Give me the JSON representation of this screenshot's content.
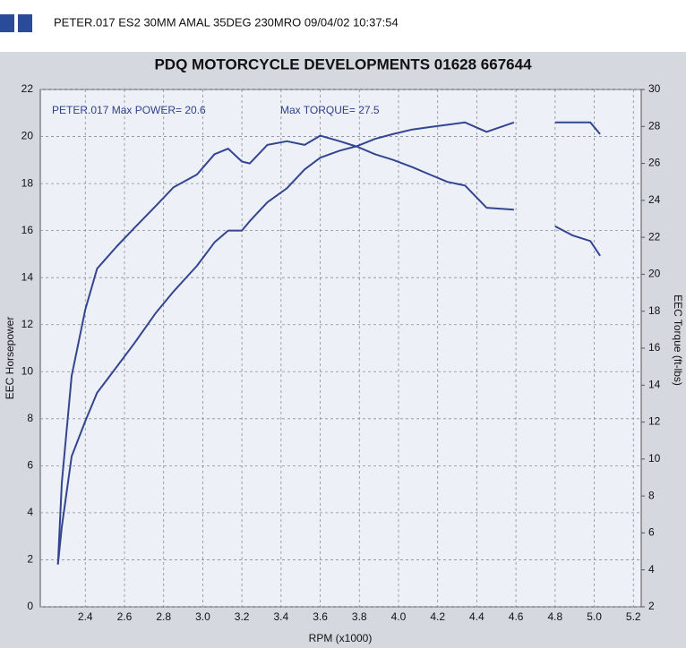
{
  "chart_data": {
    "type": "line",
    "header": "PETER.017   ES2 30MM AMAL 35DEG 230MRO  09/04/02 10:37:54",
    "title": "PDQ MOTORCYCLE DEVELOPMENTS  01628 667644",
    "annotations": [
      "PETER.017  Max POWER= 20.6",
      "Max TORQUE= 27.5"
    ],
    "x_label": "RPM (x1000)",
    "y_label": "EEC Horsepower",
    "y2_label": "EEC Torque (ft-lbs)",
    "x": [
      2.26,
      2.28,
      2.33,
      2.4,
      2.46,
      2.56,
      2.65,
      2.76,
      2.85,
      2.97,
      3.06,
      3.13,
      3.2,
      3.24,
      3.33,
      3.43,
      3.52,
      3.6,
      3.7,
      3.79,
      3.88,
      3.97,
      4.07,
      4.16,
      4.25,
      4.34,
      4.45,
      4.59,
      4.7,
      4.8,
      4.89,
      4.98,
      5.03
    ],
    "series": [
      {
        "name": "EEC Horsepower",
        "color": "#34458f",
        "values": [
          1.8,
          3.4,
          6.4,
          7.9,
          9.1,
          10.2,
          11.2,
          12.5,
          13.4,
          14.5,
          15.5,
          16.0,
          16.0,
          16.4,
          17.2,
          17.8,
          18.6,
          19.1,
          19.4,
          19.6,
          19.9,
          20.1,
          20.3,
          20.4,
          20.5,
          20.6,
          20.2,
          20.6,
          null,
          20.6,
          20.6,
          20.6,
          20.1
        ]
      },
      {
        "name": "EEC Torque (ft-lbs)",
        "color": "#34458f",
        "axis": "y2",
        "values": [
          4.3,
          8.7,
          14.5,
          18.1,
          20.3,
          21.5,
          22.5,
          23.7,
          24.7,
          25.4,
          26.5,
          26.8,
          26.1,
          26.0,
          27.0,
          27.2,
          27.0,
          27.5,
          27.2,
          26.9,
          26.5,
          26.2,
          25.8,
          25.4,
          25.0,
          24.8,
          23.6,
          23.5,
          null,
          22.6,
          22.1,
          21.8,
          21.0
        ]
      }
    ],
    "xlim": [
      2.17,
      5.24
    ],
    "xticks": [
      2.4,
      2.6,
      2.8,
      {
        "value": 3,
        "label": "3.0"
      },
      3.2,
      3.4,
      3.6,
      3.8,
      {
        "value": 4,
        "label": "4.0"
      },
      4.2,
      4.4,
      4.6,
      4.8,
      {
        "value": 5,
        "label": "5.0"
      },
      5.2
    ],
    "ylim": [
      0,
      22
    ],
    "yticks": [
      0,
      2,
      4,
      6,
      8,
      10,
      12,
      14,
      16,
      18,
      20,
      22
    ],
    "y2lim": [
      2,
      30
    ],
    "y2ticks": [
      2,
      4,
      6,
      8,
      10,
      12,
      14,
      16,
      18,
      20,
      22,
      24,
      26,
      28,
      30
    ],
    "grid": true
  }
}
